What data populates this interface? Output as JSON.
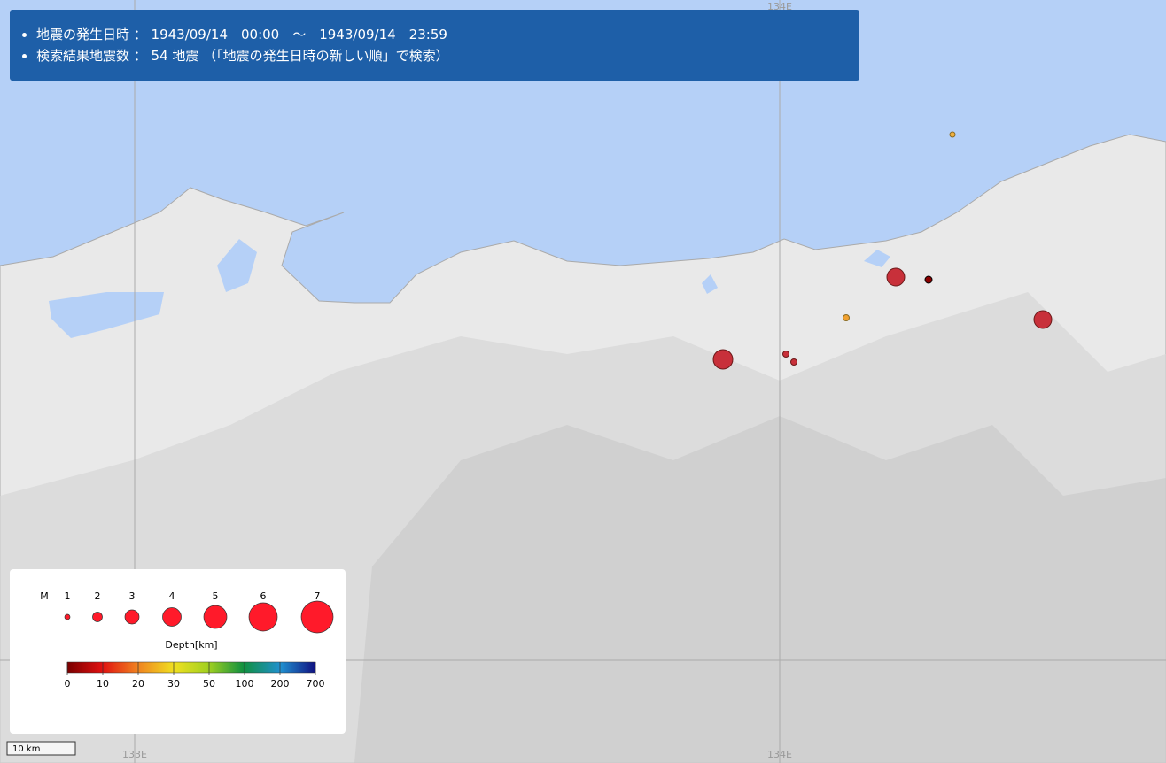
{
  "header": {
    "lines": [
      "地震の発生日時 ： 1943/09/14　00:00　～　1943/09/14　23:59",
      "検索結果地震数 ： 54 地震 （「地震の発生日時の新しい順」で検索）"
    ]
  },
  "map": {
    "grid_labels": [
      "133E",
      "134E"
    ],
    "scale": "10 km"
  },
  "legend": {
    "magnitude_label": "M",
    "magnitudes": [
      1,
      2,
      3,
      4,
      5,
      6,
      7
    ],
    "depth_title": "Depth[km]",
    "depth_ticks": [
      0,
      10,
      20,
      30,
      50,
      100,
      200,
      700
    ]
  }
}
